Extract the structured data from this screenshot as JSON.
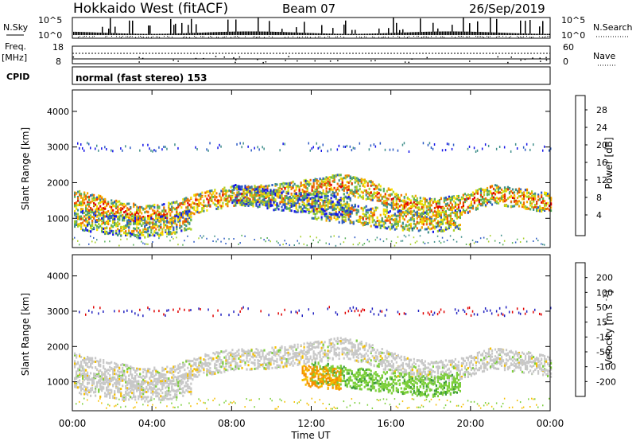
{
  "header": {
    "station": "Hokkaido West (fitACF)",
    "beam": "Beam 07",
    "date": "26/Sep/2019"
  },
  "strip_labels": {
    "nsky": "N.Sky",
    "nsky_top": "10^5",
    "nsky_bottom": "10^0",
    "nsearch": "N.Search",
    "nsearch_top": "10^5",
    "nsearch_bottom": "10^0",
    "freq_line1": "Freq.",
    "freq_line2": "[MHz]",
    "freq_top": "18",
    "freq_bottom": "8",
    "nave": "Nave",
    "nave_top": "60",
    "nave_bottom": "0",
    "cpid": "CPID",
    "mode": "normal (fast stereo) 153"
  },
  "chart_data": [
    {
      "type": "heatmap",
      "name": "power-panel",
      "ylabel": "Slant Range [km]",
      "yticks": [
        "1000",
        "2000",
        "3000",
        "4000"
      ],
      "ylim": [
        180,
        4600
      ],
      "xlim": [
        0,
        24
      ],
      "colorbar": {
        "label": "Power [dB]",
        "ticks": [
          "4",
          "8",
          "12",
          "16",
          "20",
          "24",
          "28"
        ],
        "colors": [
          "#1414e8",
          "#2c5ac4",
          "#3f8f8a",
          "#58b05a",
          "#a8d028",
          "#f5e000",
          "#f5a800",
          "#f07000",
          "#e83800",
          "#e00000"
        ]
      },
      "bands": [
        {
          "points": [
            [
              0,
              1550
            ],
            [
              2,
              1300
            ],
            [
              3.5,
              1100
            ],
            [
              5,
              1200
            ],
            [
              6.5,
              1500
            ],
            [
              8,
              1650
            ],
            [
              10,
              1700
            ],
            [
              12,
              1850
            ],
            [
              13.5,
              2000
            ],
            [
              15,
              1800
            ],
            [
              16.5,
              1450
            ],
            [
              18,
              1300
            ],
            [
              19.5,
              1400
            ],
            [
              21,
              1700
            ],
            [
              22.5,
              1600
            ],
            [
              24,
              1450
            ]
          ],
          "level": 0.72
        },
        {
          "points": [
            [
              0,
              1000
            ],
            [
              2,
              850
            ],
            [
              3.5,
              750
            ],
            [
              5,
              850
            ],
            [
              6,
              1000
            ]
          ],
          "level": 0.55
        },
        {
          "points": [
            [
              12,
              1300
            ],
            [
              14,
              1150
            ],
            [
              16,
              1000
            ],
            [
              18,
              900
            ],
            [
              19.5,
              1000
            ]
          ],
          "level": 0.62
        },
        {
          "points": [
            [
              8,
              1700
            ],
            [
              10,
              1550
            ],
            [
              12,
              1450
            ],
            [
              14,
              1350
            ]
          ],
          "level": 0.45
        }
      ]
    },
    {
      "type": "heatmap",
      "name": "velocity-panel",
      "ylabel": "Slant Range [km]",
      "yticks": [
        "1000",
        "2000",
        "3000",
        "4000"
      ],
      "ylim": [
        180,
        4600
      ],
      "xlim": [
        0,
        24
      ],
      "colorbar": {
        "label": "Velocity [m s^-1]",
        "ticks": [
          "200",
          "100",
          "50",
          "15",
          "-15",
          "-50",
          "-100",
          "-200"
        ],
        "colors": [
          "#2020c0",
          "#2e7e8e",
          "#3a9a3a",
          "#7ccf3a",
          "#c8c8c8",
          "#f5c000",
          "#f59000",
          "#f05000",
          "#e00000"
        ]
      },
      "bands": [
        {
          "points": [
            [
              0,
              1550
            ],
            [
              2,
              1300
            ],
            [
              3.5,
              1100
            ],
            [
              5,
              1200
            ],
            [
              6.5,
              1500
            ],
            [
              8,
              1650
            ],
            [
              10,
              1700
            ],
            [
              12,
              1850
            ],
            [
              13.5,
              2000
            ],
            [
              15,
              1800
            ],
            [
              16.5,
              1450
            ],
            [
              18,
              1300
            ],
            [
              19.5,
              1400
            ],
            [
              21,
              1700
            ],
            [
              22.5,
              1600
            ],
            [
              24,
              1450
            ]
          ],
          "kind": "grey"
        },
        {
          "points": [
            [
              12,
              1300
            ],
            [
              14,
              1150
            ],
            [
              16,
              1000
            ],
            [
              18,
              900
            ],
            [
              19.5,
              1000
            ]
          ],
          "kind": "green"
        },
        {
          "points": [
            [
              11.5,
              1200
            ],
            [
              12.5,
              1150
            ],
            [
              13.5,
              1100
            ]
          ],
          "kind": "orange"
        },
        {
          "points": [
            [
              0,
              1000
            ],
            [
              2,
              850
            ],
            [
              3.5,
              750
            ],
            [
              5,
              850
            ],
            [
              6,
              1000
            ]
          ],
          "kind": "grey"
        }
      ]
    }
  ],
  "xaxis": {
    "label": "Time UT",
    "ticks": [
      "00:00",
      "04:00",
      "08:00",
      "12:00",
      "16:00",
      "20:00",
      "00:00"
    ]
  }
}
